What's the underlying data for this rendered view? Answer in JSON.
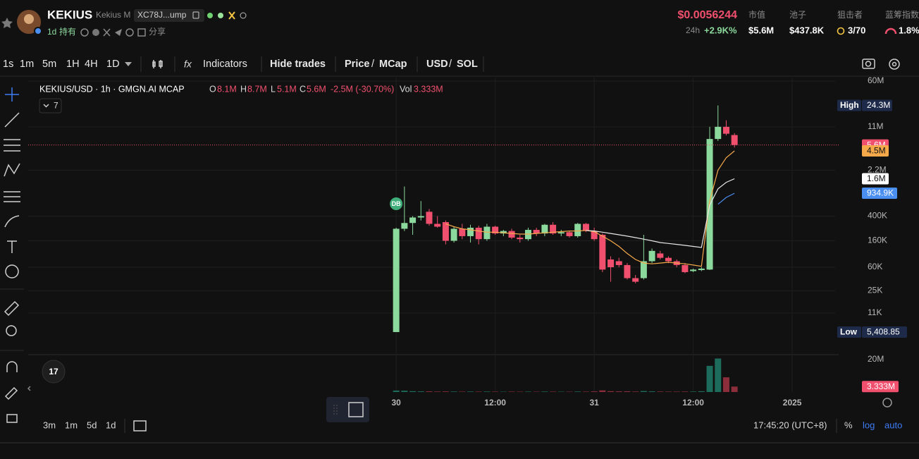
{
  "header": {
    "name": "KEKIUS",
    "fullname": "Kekius M",
    "address": "XC78J...ump",
    "age": "1d",
    "holders": "持有",
    "share": "分享",
    "price": "$0.0056244",
    "change_label": "24h",
    "change": "+2.9K%",
    "stats": [
      {
        "label": "市值",
        "value": "$5.6M"
      },
      {
        "label": "池子",
        "value": "$437.8K"
      },
      {
        "label": "狙击者",
        "value": "3/70"
      },
      {
        "label": "蓝筹指数",
        "value": "1.8%"
      }
    ]
  },
  "toolbar": {
    "intervals": [
      "1s",
      "1m",
      "5m",
      "1H",
      "4H",
      "1D"
    ],
    "indicators": "Indicators",
    "hide_trades": "Hide trades",
    "price": "Price",
    "slash": "/",
    "mcap": "MCap",
    "usd": "USD",
    "sol": "SOL"
  },
  "legend": {
    "symbol": "KEKIUS/USD · 1h · GMGN.AI MCAP",
    "o": "O",
    "o_value": "8.1M",
    "h": "H",
    "h_value": "8.7M",
    "l": "L",
    "l_value": "5.1M",
    "c": "C",
    "c_value": "5.6M",
    "change": "-2.5M (-30.70%)",
    "vol": "Vol",
    "vol_value": "3.333M",
    "indicator_count": "7"
  },
  "marker": "DB",
  "chart_data": {
    "type": "candlestick",
    "log_scale": true,
    "grid": true,
    "up_color": "#8bd99c",
    "down_color": "#f0506e",
    "ylim": [
      2530,
      68400000
    ],
    "yticks": [
      {
        "value": 60000000,
        "label": "60M"
      },
      {
        "value": 11000000,
        "label": "11M"
      },
      {
        "value": 2200000,
        "label": "2.2M"
      },
      {
        "value": 400000,
        "label": "400K"
      },
      {
        "value": 160000,
        "label": "160K"
      },
      {
        "value": 60000,
        "label": "60K"
      },
      {
        "value": 25000,
        "label": "25K"
      },
      {
        "value": 11000,
        "label": "11K"
      }
    ],
    "xlim": [
      -44.6,
      53.2
    ],
    "xticks": [
      {
        "value": 0,
        "label": "30"
      },
      {
        "value": 12,
        "label": "12:00"
      },
      {
        "value": 24,
        "label": "31"
      },
      {
        "value": 36,
        "label": "12:00"
      },
      {
        "value": 48,
        "label": "2025"
      }
    ],
    "candles": {
      "open": [
        5409,
        250000,
        310000,
        380000,
        470000,
        300000,
        320000,
        160000,
        250000,
        190000,
        260000,
        170000,
        270000,
        210000,
        230000,
        180000,
        170000,
        240000,
        210000,
        290000,
        210000,
        220000,
        190000,
        300000,
        230000,
        200000,
        80000,
        75000,
        65000,
        40000,
        40000,
        75000,
        100000,
        85000,
        75000,
        65000,
        52000,
        54000,
        55000,
        7000000,
        11000000,
        8100000
      ],
      "high": [
        260000,
        1200000,
        400000,
        700000,
        520000,
        400000,
        340000,
        270000,
        300000,
        290000,
        280000,
        300000,
        280000,
        240000,
        250000,
        200000,
        260000,
        260000,
        300000,
        320000,
        240000,
        230000,
        310000,
        310000,
        260000,
        210000,
        90000,
        85000,
        70000,
        45000,
        200000,
        120000,
        110000,
        90000,
        80000,
        70000,
        57000,
        60000,
        11000000,
        24300000,
        14000000,
        8700000
      ],
      "low": [
        5409,
        230000,
        200000,
        340000,
        280000,
        260000,
        140000,
        150000,
        170000,
        150000,
        140000,
        160000,
        200000,
        190000,
        170000,
        150000,
        160000,
        190000,
        190000,
        200000,
        190000,
        180000,
        180000,
        220000,
        160000,
        50000,
        35000,
        60000,
        38000,
        33000,
        38000,
        70000,
        80000,
        70000,
        60000,
        48000,
        50000,
        52000,
        54000,
        6500000,
        8000000,
        5100000
      ],
      "close": [
        250000,
        310000,
        380000,
        400000,
        300000,
        270000,
        160000,
        250000,
        190000,
        260000,
        170000,
        270000,
        210000,
        230000,
        180000,
        170000,
        240000,
        210000,
        290000,
        210000,
        220000,
        190000,
        300000,
        230000,
        170000,
        55000,
        60000,
        65000,
        40000,
        35000,
        75000,
        110000,
        85000,
        75000,
        65000,
        50000,
        55000,
        57000,
        7000000,
        11000000,
        8500000,
        5600000
      ]
    },
    "ma": [
      {
        "color": "#f5a94a",
        "values": [
          null,
          null,
          null,
          null,
          null,
          null,
          300000,
          270000,
          250000,
          240000,
          230000,
          220000,
          220000,
          215000,
          210000,
          205000,
          205000,
          210000,
          215000,
          220000,
          225000,
          230000,
          230000,
          235000,
          225000,
          190000,
          160000,
          130000,
          100000,
          80000,
          70000,
          68000,
          70000,
          72000,
          70000,
          68000,
          65000,
          62000,
          700000,
          2200000,
          3500000,
          4500000
        ]
      },
      {
        "color": "#e6e6e6",
        "values": [
          null,
          null,
          null,
          null,
          null,
          null,
          null,
          null,
          null,
          null,
          null,
          null,
          null,
          null,
          null,
          null,
          null,
          null,
          null,
          null,
          null,
          null,
          null,
          235000,
          230000,
          220000,
          210000,
          200000,
          190000,
          180000,
          170000,
          160000,
          150000,
          145000,
          140000,
          135000,
          130000,
          125000,
          600000,
          1100000,
          1400000,
          1600000
        ]
      },
      {
        "color": "#4a8ef0",
        "values": [
          null,
          null,
          null,
          null,
          null,
          null,
          null,
          null,
          null,
          null,
          null,
          null,
          null,
          null,
          null,
          null,
          null,
          null,
          null,
          null,
          null,
          null,
          null,
          null,
          null,
          null,
          null,
          null,
          null,
          null,
          null,
          null,
          null,
          null,
          null,
          null,
          null,
          null,
          null,
          620000,
          800000,
          934900
        ]
      }
    ],
    "price_labels": [
      {
        "tag": "High",
        "value": 24300000,
        "label": "24.3M",
        "color": "#1e2a4a",
        "text_color": "#ffffff"
      },
      {
        "value": 5600000,
        "label": "5.6M",
        "color": "#f0506e",
        "text_color": "#ffffff"
      },
      {
        "value": 4500000,
        "label": "4.5M",
        "color": "#f5a94a",
        "text_color": "#111111"
      },
      {
        "value": 1600000,
        "label": "1.6M",
        "color": "#ffffff",
        "text_color": "#111111"
      },
      {
        "value": 934900,
        "label": "934.9K",
        "color": "#4a8ef0",
        "text_color": "#ffffff"
      },
      {
        "tag": "Low",
        "value": 5408.85,
        "label": "5,408.85",
        "color": "#1e2a4a",
        "text_color": "#ffffff"
      }
    ],
    "volume": {
      "up_color": "#1d6b5a",
      "down_color": "#8b2d3a",
      "ylim": [
        0,
        22000000
      ],
      "yticks": [
        {
          "value": 20000000,
          "label": "20M"
        }
      ],
      "values": [
        900000,
        800000,
        500000,
        400000,
        400000,
        300000,
        350000,
        300000,
        250000,
        300000,
        250000,
        300000,
        250000,
        200000,
        250000,
        200000,
        250000,
        200000,
        300000,
        250000,
        200000,
        200000,
        300000,
        250000,
        400000,
        1000000,
        500000,
        400000,
        450000,
        300000,
        600000,
        400000,
        300000,
        250000,
        250000,
        300000,
        300000,
        500000,
        16000000,
        20500000,
        9000000,
        3333000
      ],
      "last_label": {
        "value": 3333000,
        "label": "3.333M",
        "color": "#f0506e"
      }
    }
  },
  "footer": {
    "ranges": [
      "3m",
      "1m",
      "5d",
      "1d"
    ],
    "time": "17:45:20 (UTC+8)",
    "percent": "%",
    "log": "log",
    "auto": "auto"
  }
}
